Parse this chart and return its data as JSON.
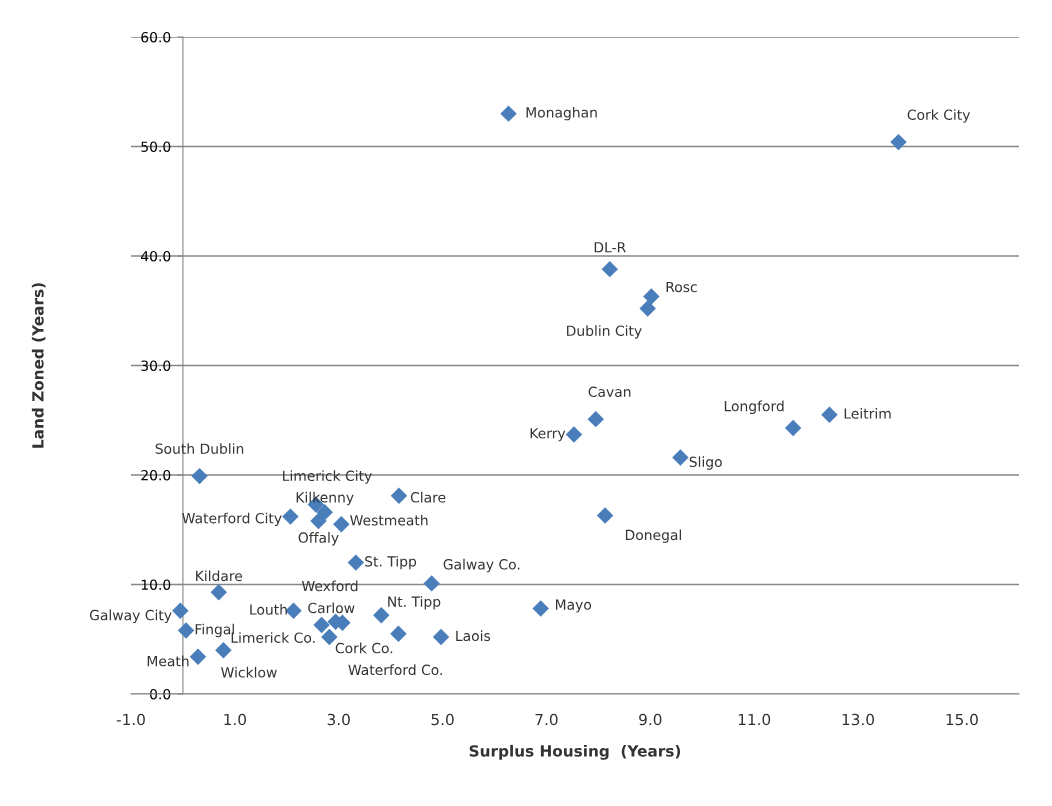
{
  "chart_data": {
    "type": "scatter",
    "xlabel": "Surplus Housing  (Years)",
    "ylabel": "Land Zoned (Years)",
    "x": [
      6.27,
      13.78,
      8.22,
      9.02,
      8.95,
      7.95,
      7.53,
      11.75,
      12.45,
      9.58,
      0.32,
      4.16,
      2.56,
      2.73,
      2.07,
      2.61,
      3.05,
      8.13,
      3.33,
      4.79,
      0.69,
      -0.05,
      0.06,
      2.13,
      2.94,
      3.07,
      2.67,
      2.82,
      3.82,
      4.15,
      4.97,
      6.89,
      0.29,
      0.78
    ],
    "values": [
      53.0,
      50.4,
      38.8,
      36.3,
      35.2,
      25.1,
      23.7,
      24.3,
      25.5,
      21.6,
      19.9,
      18.1,
      17.3,
      16.6,
      16.2,
      15.8,
      15.5,
      16.3,
      12.0,
      10.1,
      9.3,
      7.6,
      5.8,
      7.6,
      6.6,
      6.5,
      6.3,
      5.2,
      7.2,
      5.5,
      5.2,
      7.8,
      3.4,
      4.0
    ],
    "color": "#4a7ebb",
    "marker": "diamond",
    "grid": "y",
    "xlim": [
      -1,
      16.1
    ],
    "ylim": [
      0,
      60
    ],
    "xticks": [
      {
        "value": -1,
        "label": "-1.0"
      },
      {
        "value": 1,
        "label": "1.0"
      },
      {
        "value": 3,
        "label": "3.0"
      },
      {
        "value": 5,
        "label": "5.0"
      },
      {
        "value": 7,
        "label": "7.0"
      },
      {
        "value": 9,
        "label": "9.0"
      },
      {
        "value": 11,
        "label": "11.0"
      },
      {
        "value": 13,
        "label": "13.0"
      },
      {
        "value": 15,
        "label": "15.0"
      }
    ],
    "yticks": [
      {
        "value": 0,
        "label": "0.0"
      },
      {
        "value": 10,
        "label": "10.0"
      },
      {
        "value": 20,
        "label": "20.0"
      },
      {
        "value": 30,
        "label": "30.0"
      },
      {
        "value": 40,
        "label": "40.0"
      },
      {
        "value": 50,
        "label": "50.0"
      },
      {
        "value": 60,
        "label": "60.0"
      }
    ],
    "annotations": [
      {
        "text": "Monaghan",
        "x": 6.27,
        "y": 53.0
      },
      {
        "text": "Cork City",
        "x": 13.78,
        "y": 50.4
      },
      {
        "text": "DL-R",
        "x": 8.22,
        "y": 38.8
      },
      {
        "text": "Rosc",
        "x": 9.02,
        "y": 36.3
      },
      {
        "text": "Dublin City",
        "x": 8.95,
        "y": 35.2
      },
      {
        "text": "Cavan",
        "x": 7.95,
        "y": 25.1
      },
      {
        "text": "Kerry",
        "x": 7.53,
        "y": 23.7
      },
      {
        "text": "Longford",
        "x": 11.75,
        "y": 24.3
      },
      {
        "text": "Leitrim",
        "x": 12.45,
        "y": 25.5
      },
      {
        "text": "Sligo",
        "x": 9.58,
        "y": 21.6
      },
      {
        "text": "South Dublin",
        "x": 0.32,
        "y": 19.9
      },
      {
        "text": "Clare",
        "x": 4.16,
        "y": 18.1
      },
      {
        "text": "Limerick City",
        "x": 2.56,
        "y": 17.3
      },
      {
        "text": "Kilkenny",
        "x": 2.73,
        "y": 16.6
      },
      {
        "text": "Waterford City",
        "x": 2.07,
        "y": 16.2
      },
      {
        "text": "Offaly",
        "x": 2.61,
        "y": 15.8
      },
      {
        "text": "Westmeath",
        "x": 3.05,
        "y": 15.5
      },
      {
        "text": "Donegal",
        "x": 8.13,
        "y": 16.3
      },
      {
        "text": "St. Tipp",
        "x": 3.33,
        "y": 12.0
      },
      {
        "text": "Galway Co.",
        "x": 4.79,
        "y": 10.1
      },
      {
        "text": "Kildare",
        "x": 0.69,
        "y": 9.3
      },
      {
        "text": "Galway City",
        "x": -0.05,
        "y": 7.6
      },
      {
        "text": "Fingal",
        "x": 0.06,
        "y": 5.8
      },
      {
        "text": "Louth",
        "x": 2.13,
        "y": 7.6
      },
      {
        "text": "Wexford",
        "x": 2.94,
        "y": 6.6
      },
      {
        "text": "Carlow",
        "x": 3.07,
        "y": 6.5
      },
      {
        "text": "Limerick Co.",
        "x": 2.67,
        "y": 6.3
      },
      {
        "text": "Cork Co.",
        "x": 2.82,
        "y": 5.2
      },
      {
        "text": "Nt. Tipp",
        "x": 3.82,
        "y": 7.2
      },
      {
        "text": "Waterford Co.",
        "x": 4.15,
        "y": 5.5
      },
      {
        "text": "Laois",
        "x": 4.97,
        "y": 5.2
      },
      {
        "text": "Mayo",
        "x": 6.89,
        "y": 7.8
      },
      {
        "text": "Meath",
        "x": 0.29,
        "y": 3.4
      },
      {
        "text": "Wicklow",
        "x": 0.78,
        "y": 4.0
      }
    ]
  }
}
